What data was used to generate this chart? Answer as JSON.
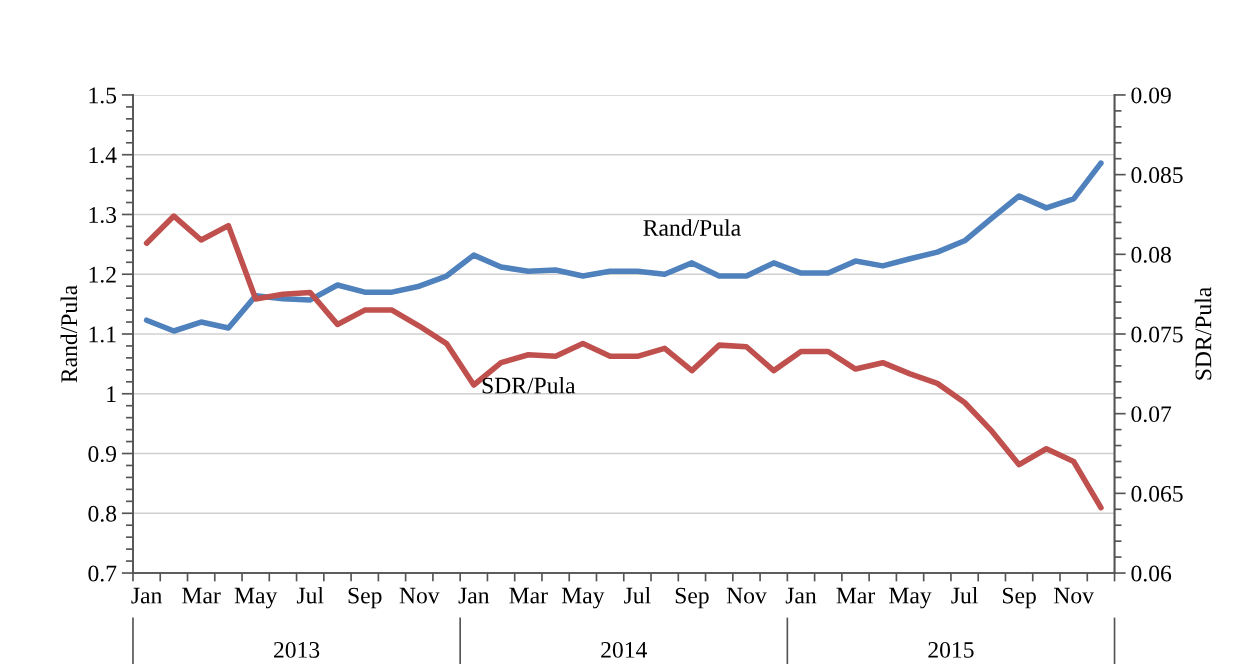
{
  "chart_data": {
    "type": "line",
    "categories": [
      "Jan",
      null,
      "Mar",
      null,
      "May",
      null,
      "Jul",
      null,
      "Sep",
      null,
      "Nov",
      null,
      "Jan",
      null,
      "Mar",
      null,
      "May",
      null,
      "Jul",
      null,
      "Sep",
      null,
      "Nov",
      null,
      "Jan",
      null,
      "Mar",
      null,
      "May",
      null,
      "Jul",
      null,
      "Sep",
      null,
      "Nov",
      null
    ],
    "series": [
      {
        "name": "Rand/Pula",
        "color": "#4f81bd",
        "values": [
          1.123,
          1.105,
          1.12,
          1.11,
          1.164,
          1.159,
          1.157,
          1.182,
          1.17,
          1.17,
          1.18,
          1.197,
          1.232,
          1.212,
          1.205,
          1.207,
          1.197,
          1.205,
          1.205,
          1.2,
          1.219,
          1.197,
          1.197,
          1.219,
          1.202,
          1.202,
          1.222,
          1.214,
          1.226,
          1.237,
          1.256,
          1.294,
          1.331,
          1.311,
          1.326,
          1.386
        ]
      },
      {
        "name": "SDR/Pula",
        "color": "#c0504d",
        "axis": "y2",
        "values": [
          0.0807,
          0.0824,
          0.0809,
          0.0818,
          0.0772,
          0.0775,
          0.0776,
          0.0756,
          0.0765,
          0.0765,
          0.0755,
          0.0744,
          0.0718,
          0.0732,
          0.0737,
          0.0736,
          0.0744,
          0.0736,
          0.0736,
          0.0741,
          0.0727,
          0.0743,
          0.0742,
          0.0727,
          0.0739,
          0.0739,
          0.0728,
          0.0732,
          0.0725,
          0.0719,
          0.0707,
          0.0689,
          0.0668,
          0.0678,
          0.067,
          0.0641
        ]
      }
    ],
    "ylabel": "Rand/Pula",
    "y2label": "SDR/Pula",
    "ylim": [
      0.7,
      1.5
    ],
    "yticks": [
      0.7,
      0.8,
      0.9,
      1,
      1.1,
      1.2,
      1.3,
      1.4,
      1.5
    ],
    "y2lim": [
      0.06,
      0.09
    ],
    "y2ticks": [
      0.06,
      0.065,
      0.07,
      0.075,
      0.08,
      0.085,
      0.09
    ],
    "annotations": [
      "2013",
      "2014",
      "2015"
    ],
    "grid": "y",
    "legend": false,
    "marker": "none",
    "line_style": "solid"
  }
}
